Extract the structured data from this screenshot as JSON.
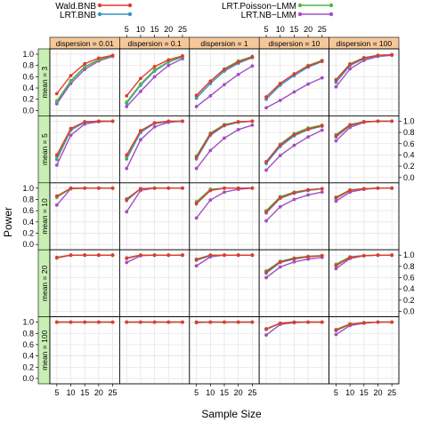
{
  "chart_data": {
    "type": "line",
    "layout": "trellis 5 rows (mean) x 5 columns (dispersion)",
    "xlabel": "Sample Size",
    "ylabel": "Power",
    "x": [
      5,
      10,
      15,
      20,
      25
    ],
    "x_ticks": [
      "5",
      "10",
      "15",
      "20",
      "25"
    ],
    "ylim": [
      0,
      1
    ],
    "y_ticks": [
      "0.0",
      "0.2",
      "0.4",
      "0.6",
      "0.8",
      "1.0"
    ],
    "grid": true,
    "legend": {
      "position": "top",
      "columns": 2
    },
    "colors": {
      "Wald.BNB": "#e23a2f",
      "LRT.BNB": "#3c8fc4",
      "LRT.Poisson-LMM": "#4fb848",
      "LRT.NB-LMM": "#a24fc1",
      "strip_top": "#f5c89a",
      "strip_side": "#c9f0b4"
    },
    "series_names": [
      "Wald.BNB",
      "LRT.BNB",
      "LRT.Poisson−LMM",
      "LRT.NB−LMM"
    ],
    "column_labels": [
      "dispersion = 0.01",
      "dispersion = 0.1",
      "dispersion = 1",
      "dispersion = 10",
      "dispersion = 100"
    ],
    "row_labels": [
      "mean = 3",
      "mean = 5",
      "mean = 10",
      "mean = 20",
      "mean = 100"
    ],
    "panels": [
      [
        {
          "Wald.BNB": [
            0.3,
            0.62,
            0.83,
            0.93,
            0.98
          ],
          "LRT.BNB": [
            0.15,
            0.52,
            0.77,
            0.9,
            0.97
          ],
          "LRT.Poisson-LMM": [
            0.17,
            0.53,
            0.78,
            0.9,
            0.97
          ],
          "LRT.NB-LMM": [
            0.12,
            0.48,
            0.73,
            0.88,
            0.96
          ]
        },
        {
          "Wald.BNB": [
            0.26,
            0.57,
            0.78,
            0.9,
            0.97
          ],
          "LRT.BNB": [
            0.13,
            0.45,
            0.7,
            0.86,
            0.95
          ],
          "LRT.Poisson-LMM": [
            0.15,
            0.47,
            0.72,
            0.87,
            0.96
          ],
          "LRT.NB-LMM": [
            0.07,
            0.34,
            0.6,
            0.8,
            0.92
          ]
        },
        {
          "Wald.BNB": [
            0.27,
            0.52,
            0.73,
            0.86,
            0.95
          ],
          "LRT.BNB": [
            0.22,
            0.48,
            0.7,
            0.84,
            0.94
          ],
          "LRT.Poisson-LMM": [
            0.26,
            0.52,
            0.74,
            0.88,
            0.96
          ],
          "LRT.NB-LMM": [
            0.07,
            0.26,
            0.46,
            0.64,
            0.79
          ]
        },
        {
          "Wald.BNB": [
            0.24,
            0.48,
            0.65,
            0.79,
            0.88
          ],
          "LRT.BNB": [
            0.2,
            0.45,
            0.62,
            0.77,
            0.87
          ],
          "LRT.Poisson-LMM": [
            0.24,
            0.48,
            0.65,
            0.8,
            0.89
          ],
          "LRT.NB-LMM": [
            0.05,
            0.18,
            0.33,
            0.47,
            0.58
          ]
        },
        {
          "Wald.BNB": [
            0.54,
            0.82,
            0.93,
            0.98,
            0.99
          ],
          "LRT.BNB": [
            0.5,
            0.8,
            0.92,
            0.97,
            0.99
          ],
          "LRT.Poisson-LMM": [
            0.55,
            0.83,
            0.94,
            0.98,
            0.99
          ],
          "LRT.NB-LMM": [
            0.42,
            0.74,
            0.89,
            0.96,
            0.98
          ]
        }
      ],
      [
        {
          "Wald.BNB": [
            0.4,
            0.87,
            0.99,
            1.0,
            1.0
          ],
          "LRT.BNB": [
            0.32,
            0.84,
            0.98,
            1.0,
            1.0
          ],
          "LRT.Poisson-LMM": [
            0.36,
            0.86,
            0.99,
            1.0,
            1.0
          ],
          "LRT.NB-LMM": [
            0.22,
            0.75,
            0.95,
            0.99,
            1.0
          ]
        },
        {
          "Wald.BNB": [
            0.4,
            0.83,
            0.97,
            1.0,
            1.0
          ],
          "LRT.BNB": [
            0.33,
            0.8,
            0.96,
            0.99,
            1.0
          ],
          "LRT.Poisson-LMM": [
            0.36,
            0.83,
            0.97,
            1.0,
            1.0
          ],
          "LRT.NB-LMM": [
            0.16,
            0.67,
            0.9,
            0.98,
            1.0
          ]
        },
        {
          "Wald.BNB": [
            0.36,
            0.77,
            0.93,
            0.99,
            1.0
          ],
          "LRT.BNB": [
            0.33,
            0.75,
            0.92,
            0.98,
            1.0
          ],
          "LRT.Poisson-LMM": [
            0.38,
            0.79,
            0.94,
            0.99,
            1.0
          ],
          "LRT.NB-LMM": [
            0.16,
            0.48,
            0.7,
            0.85,
            0.93
          ]
        },
        {
          "Wald.BNB": [
            0.28,
            0.58,
            0.76,
            0.86,
            0.92
          ],
          "LRT.BNB": [
            0.25,
            0.55,
            0.74,
            0.85,
            0.91
          ],
          "LRT.Poisson-LMM": [
            0.28,
            0.59,
            0.78,
            0.88,
            0.93
          ],
          "LRT.NB-LMM": [
            0.13,
            0.39,
            0.57,
            0.72,
            0.84
          ]
        },
        {
          "Wald.BNB": [
            0.74,
            0.93,
            0.99,
            1.0,
            1.0
          ],
          "LRT.BNB": [
            0.72,
            0.92,
            0.99,
            1.0,
            1.0
          ],
          "LRT.Poisson-LMM": [
            0.76,
            0.94,
            0.99,
            1.0,
            1.0
          ],
          "LRT.NB-LMM": [
            0.65,
            0.89,
            0.98,
            1.0,
            1.0
          ]
        }
      ],
      [
        {
          "Wald.BNB": [
            0.86,
            1.0,
            1.0,
            1.0,
            1.0
          ],
          "LRT.BNB": [
            0.84,
            1.0,
            1.0,
            1.0,
            1.0
          ],
          "LRT.Poisson-LMM": [
            0.84,
            0.99,
            1.0,
            1.0,
            1.0
          ],
          "LRT.NB-LMM": [
            0.7,
            0.99,
            1.0,
            1.0,
            1.0
          ]
        },
        {
          "Wald.BNB": [
            0.8,
            0.99,
            1.0,
            1.0,
            1.0
          ],
          "LRT.BNB": [
            0.78,
            0.99,
            1.0,
            1.0,
            1.0
          ],
          "LRT.Poisson-LMM": [
            0.81,
            0.99,
            1.0,
            1.0,
            1.0
          ],
          "LRT.NB-LMM": [
            0.58,
            0.96,
            1.0,
            1.0,
            1.0
          ]
        },
        {
          "Wald.BNB": [
            0.73,
            0.96,
            1.0,
            1.0,
            1.0
          ],
          "LRT.BNB": [
            0.72,
            0.96,
            1.0,
            1.0,
            1.0
          ],
          "LRT.Poisson-LMM": [
            0.76,
            0.98,
            1.0,
            1.0,
            1.0
          ],
          "LRT.NB-LMM": [
            0.47,
            0.79,
            0.93,
            0.98,
            1.0
          ]
        },
        {
          "Wald.BNB": [
            0.58,
            0.83,
            0.92,
            0.97,
            0.99
          ],
          "LRT.BNB": [
            0.56,
            0.82,
            0.91,
            0.96,
            0.99
          ],
          "LRT.Poisson-LMM": [
            0.6,
            0.85,
            0.93,
            0.97,
            0.99
          ],
          "LRT.NB-LMM": [
            0.42,
            0.67,
            0.8,
            0.88,
            0.93
          ]
        },
        {
          "Wald.BNB": [
            0.83,
            0.96,
            0.99,
            1.0,
            1.0
          ],
          "LRT.BNB": [
            0.82,
            0.96,
            0.99,
            1.0,
            1.0
          ],
          "LRT.Poisson-LMM": [
            0.84,
            0.97,
            0.99,
            1.0,
            1.0
          ],
          "LRT.NB-LMM": [
            0.77,
            0.93,
            0.98,
            1.0,
            1.0
          ]
        }
      ],
      [
        {
          "Wald.BNB": [
            0.96,
            1.0,
            1.0,
            1.0,
            1.0
          ],
          "LRT.BNB": [
            0.95,
            1.0,
            1.0,
            1.0,
            1.0
          ],
          "LRT.Poisson-LMM": [
            0.95,
            1.0,
            1.0,
            1.0,
            1.0
          ],
          "LRT.NB-LMM": [
            0.95,
            1.0,
            1.0,
            1.0,
            1.0
          ]
        },
        {
          "Wald.BNB": [
            0.95,
            1.0,
            1.0,
            1.0,
            1.0
          ],
          "LRT.BNB": [
            0.94,
            1.0,
            1.0,
            1.0,
            1.0
          ],
          "LRT.Poisson-LMM": [
            0.95,
            1.0,
            1.0,
            1.0,
            1.0
          ],
          "LRT.NB-LMM": [
            0.87,
            0.99,
            1.0,
            1.0,
            1.0
          ]
        },
        {
          "Wald.BNB": [
            0.92,
            1.0,
            1.0,
            1.0,
            1.0
          ],
          "LRT.BNB": [
            0.91,
            0.99,
            1.0,
            1.0,
            1.0
          ],
          "LRT.Poisson-LMM": [
            0.93,
            1.0,
            1.0,
            1.0,
            1.0
          ],
          "LRT.NB-LMM": [
            0.81,
            0.97,
            1.0,
            1.0,
            1.0
          ]
        },
        {
          "Wald.BNB": [
            0.7,
            0.88,
            0.94,
            0.97,
            0.99
          ],
          "LRT.BNB": [
            0.68,
            0.87,
            0.93,
            0.97,
            0.99
          ],
          "LRT.Poisson-LMM": [
            0.72,
            0.89,
            0.95,
            0.98,
            0.99
          ],
          "LRT.NB-LMM": [
            0.6,
            0.79,
            0.88,
            0.93,
            0.96
          ]
        },
        {
          "Wald.BNB": [
            0.82,
            0.96,
            0.99,
            1.0,
            1.0
          ],
          "LRT.BNB": [
            0.81,
            0.96,
            0.99,
            1.0,
            1.0
          ],
          "LRT.Poisson-LMM": [
            0.84,
            0.97,
            0.99,
            1.0,
            1.0
          ],
          "LRT.NB-LMM": [
            0.76,
            0.94,
            0.99,
            1.0,
            1.0
          ]
        }
      ],
      [
        {
          "Wald.BNB": [
            1.0,
            1.0,
            1.0,
            1.0,
            1.0
          ],
          "LRT.BNB": [
            1.0,
            1.0,
            1.0,
            1.0,
            1.0
          ],
          "LRT.Poisson-LMM": [
            1.0,
            1.0,
            1.0,
            1.0,
            1.0
          ],
          "LRT.NB-LMM": [
            1.0,
            1.0,
            1.0,
            1.0,
            1.0
          ]
        },
        {
          "Wald.BNB": [
            1.0,
            1.0,
            1.0,
            1.0,
            1.0
          ],
          "LRT.BNB": [
            1.0,
            1.0,
            1.0,
            1.0,
            1.0
          ],
          "LRT.Poisson-LMM": [
            1.0,
            1.0,
            1.0,
            1.0,
            1.0
          ],
          "LRT.NB-LMM": [
            1.0,
            1.0,
            1.0,
            1.0,
            1.0
          ]
        },
        {
          "Wald.BNB": [
            1.0,
            1.0,
            1.0,
            1.0,
            1.0
          ],
          "LRT.BNB": [
            1.0,
            1.0,
            1.0,
            1.0,
            1.0
          ],
          "LRT.Poisson-LMM": [
            1.0,
            1.0,
            1.0,
            1.0,
            1.0
          ],
          "LRT.NB-LMM": [
            0.99,
            1.0,
            1.0,
            1.0,
            1.0
          ]
        },
        {
          "Wald.BNB": [
            0.88,
            0.98,
            1.0,
            1.0,
            1.0
          ],
          "LRT.BNB": [
            0.87,
            0.98,
            1.0,
            1.0,
            1.0
          ],
          "LRT.Poisson-LMM": [
            0.88,
            0.98,
            1.0,
            1.0,
            1.0
          ],
          "LRT.NB-LMM": [
            0.77,
            0.96,
            0.99,
            1.0,
            1.0
          ]
        },
        {
          "Wald.BNB": [
            0.86,
            0.96,
            0.99,
            1.0,
            1.0
          ],
          "LRT.BNB": [
            0.85,
            0.96,
            0.99,
            1.0,
            1.0
          ],
          "LRT.Poisson-LMM": [
            0.87,
            0.97,
            0.99,
            1.0,
            1.0
          ],
          "LRT.NB-LMM": [
            0.78,
            0.94,
            0.98,
            1.0,
            1.0
          ]
        }
      ]
    ]
  }
}
